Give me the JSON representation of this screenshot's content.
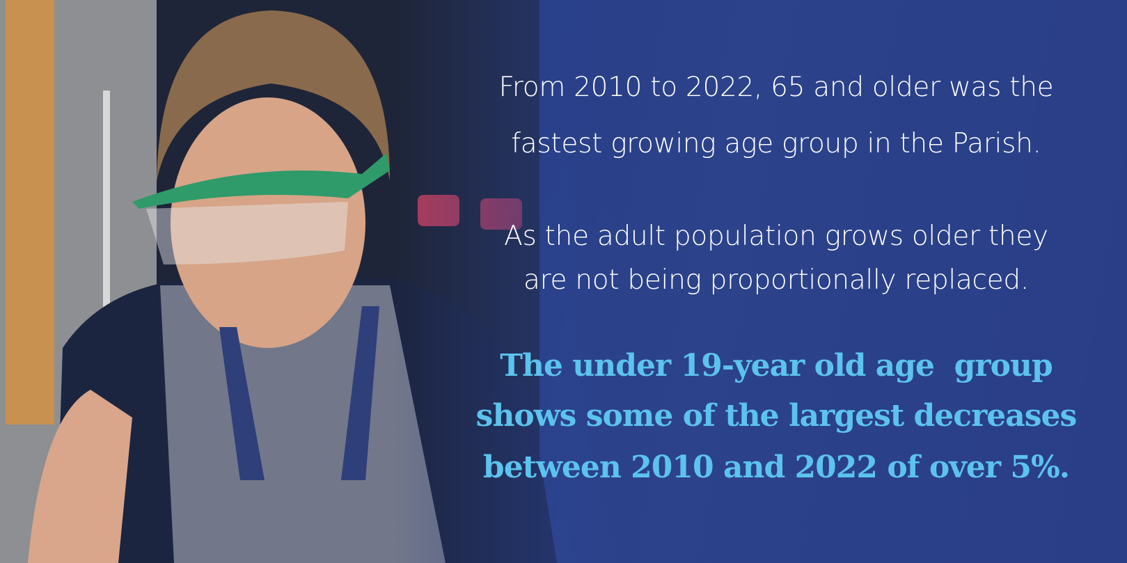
{
  "statements": [
    {
      "lines": [
        "From 2010 to 2022, 65 and older was the",
        "fastest growing age group in the Parish."
      ]
    },
    {
      "lines": [
        "As the adult population grows older they",
        "are not being proportionally replaced."
      ]
    },
    {
      "lines": [
        "The under 19-year old age  group",
        "shows some of the largest decreases",
        "between 2010 and 2022 of over 5%."
      ]
    }
  ]
}
